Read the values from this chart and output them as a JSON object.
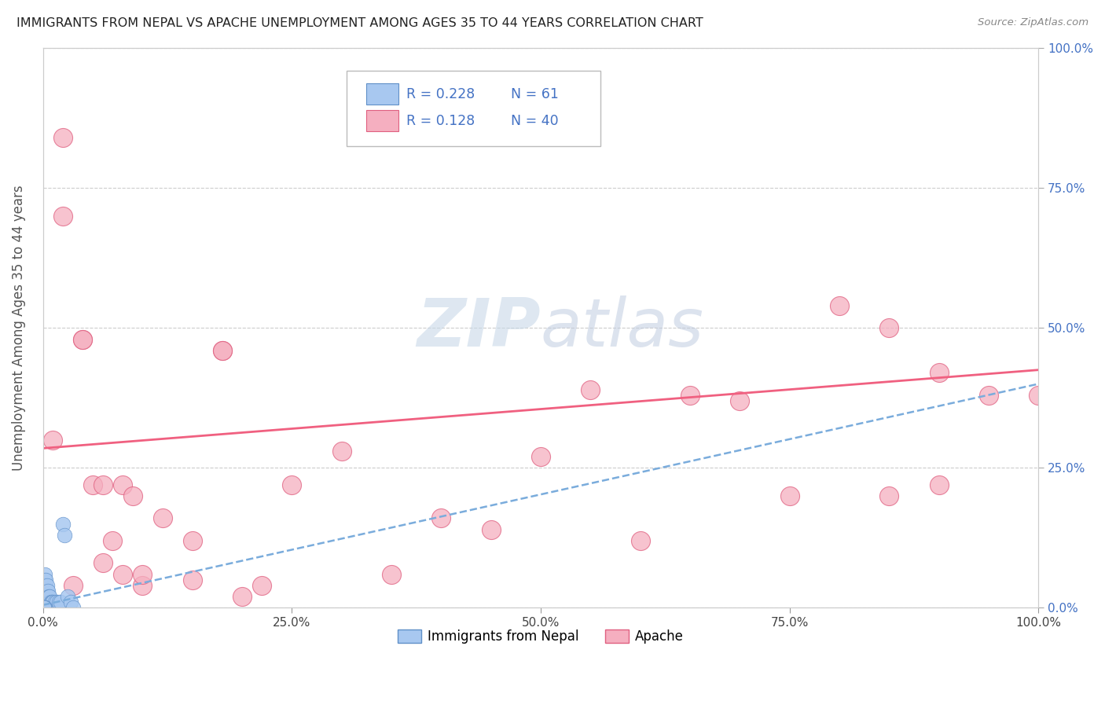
{
  "title": "IMMIGRANTS FROM NEPAL VS APACHE UNEMPLOYMENT AMONG AGES 35 TO 44 YEARS CORRELATION CHART",
  "source": "Source: ZipAtlas.com",
  "ylabel": "Unemployment Among Ages 35 to 44 years",
  "r_nepal": 0.228,
  "n_nepal": 61,
  "r_apache": 0.128,
  "n_apache": 40,
  "xlim": [
    0,
    1.0
  ],
  "ylim": [
    0,
    1.0
  ],
  "xticks": [
    0.0,
    0.25,
    0.5,
    0.75,
    1.0
  ],
  "yticks": [
    0.0,
    0.25,
    0.5,
    0.75,
    1.0
  ],
  "apache_x": [
    0.01,
    0.02,
    0.02,
    0.04,
    0.04,
    0.05,
    0.06,
    0.07,
    0.08,
    0.09,
    0.1,
    0.12,
    0.15,
    0.18,
    0.18,
    0.22,
    0.25,
    0.3,
    0.35,
    0.4,
    0.45,
    0.5,
    0.55,
    0.6,
    0.65,
    0.7,
    0.75,
    0.8,
    0.85,
    0.9,
    0.95,
    1.0,
    0.03,
    0.06,
    0.08,
    0.1,
    0.15,
    0.2,
    0.85,
    0.9
  ],
  "apache_y": [
    0.3,
    0.84,
    0.7,
    0.48,
    0.48,
    0.22,
    0.22,
    0.12,
    0.22,
    0.2,
    0.04,
    0.16,
    0.12,
    0.46,
    0.46,
    0.04,
    0.22,
    0.28,
    0.06,
    0.16,
    0.14,
    0.27,
    0.39,
    0.12,
    0.38,
    0.37,
    0.2,
    0.54,
    0.5,
    0.42,
    0.38,
    0.38,
    0.04,
    0.08,
    0.06,
    0.06,
    0.05,
    0.02,
    0.2,
    0.22
  ],
  "nepal_x": [
    0.001,
    0.001,
    0.001,
    0.001,
    0.001,
    0.001,
    0.001,
    0.001,
    0.001,
    0.001,
    0.002,
    0.002,
    0.002,
    0.002,
    0.002,
    0.002,
    0.002,
    0.003,
    0.003,
    0.003,
    0.003,
    0.003,
    0.004,
    0.004,
    0.004,
    0.004,
    0.004,
    0.005,
    0.005,
    0.005,
    0.005,
    0.006,
    0.006,
    0.006,
    0.007,
    0.007,
    0.007,
    0.008,
    0.008,
    0.009,
    0.009,
    0.01,
    0.01,
    0.011,
    0.012,
    0.013,
    0.014,
    0.015,
    0.016,
    0.018,
    0.02,
    0.022,
    0.025,
    0.028,
    0.03,
    0.001,
    0.001,
    0.002,
    0.001,
    0.001,
    0.001
  ],
  "nepal_y": [
    0.01,
    0.02,
    0.03,
    0.04,
    0.05,
    0.0,
    0.0,
    0.0,
    0.0,
    0.0,
    0.01,
    0.02,
    0.03,
    0.04,
    0.05,
    0.06,
    0.0,
    0.02,
    0.03,
    0.04,
    0.05,
    0.01,
    0.02,
    0.03,
    0.04,
    0.0,
    0.01,
    0.02,
    0.03,
    0.01,
    0.0,
    0.01,
    0.02,
    0.0,
    0.01,
    0.02,
    0.0,
    0.01,
    0.0,
    0.01,
    0.0,
    0.01,
    0.0,
    0.0,
    0.01,
    0.0,
    0.01,
    0.0,
    0.01,
    0.01,
    0.15,
    0.13,
    0.02,
    0.01,
    0.0,
    0.0,
    0.0,
    0.0,
    0.0,
    0.0,
    0.0
  ],
  "nepal_color": "#a8c8f0",
  "apache_color": "#f5afc0",
  "nepal_line_color": "#7aacdc",
  "apache_line_color": "#f06080",
  "nepal_marker_edge": "#6090c8",
  "apache_marker_edge": "#e06080",
  "grid_color": "#cccccc",
  "title_color": "#222222",
  "axis_label_color": "#555555",
  "tick_color_right": "#4472C4",
  "tick_color_bottom": "#444444",
  "legend_r_color": "#4472C4",
  "watermark_color": "#ccd8e8",
  "background_color": "#ffffff"
}
